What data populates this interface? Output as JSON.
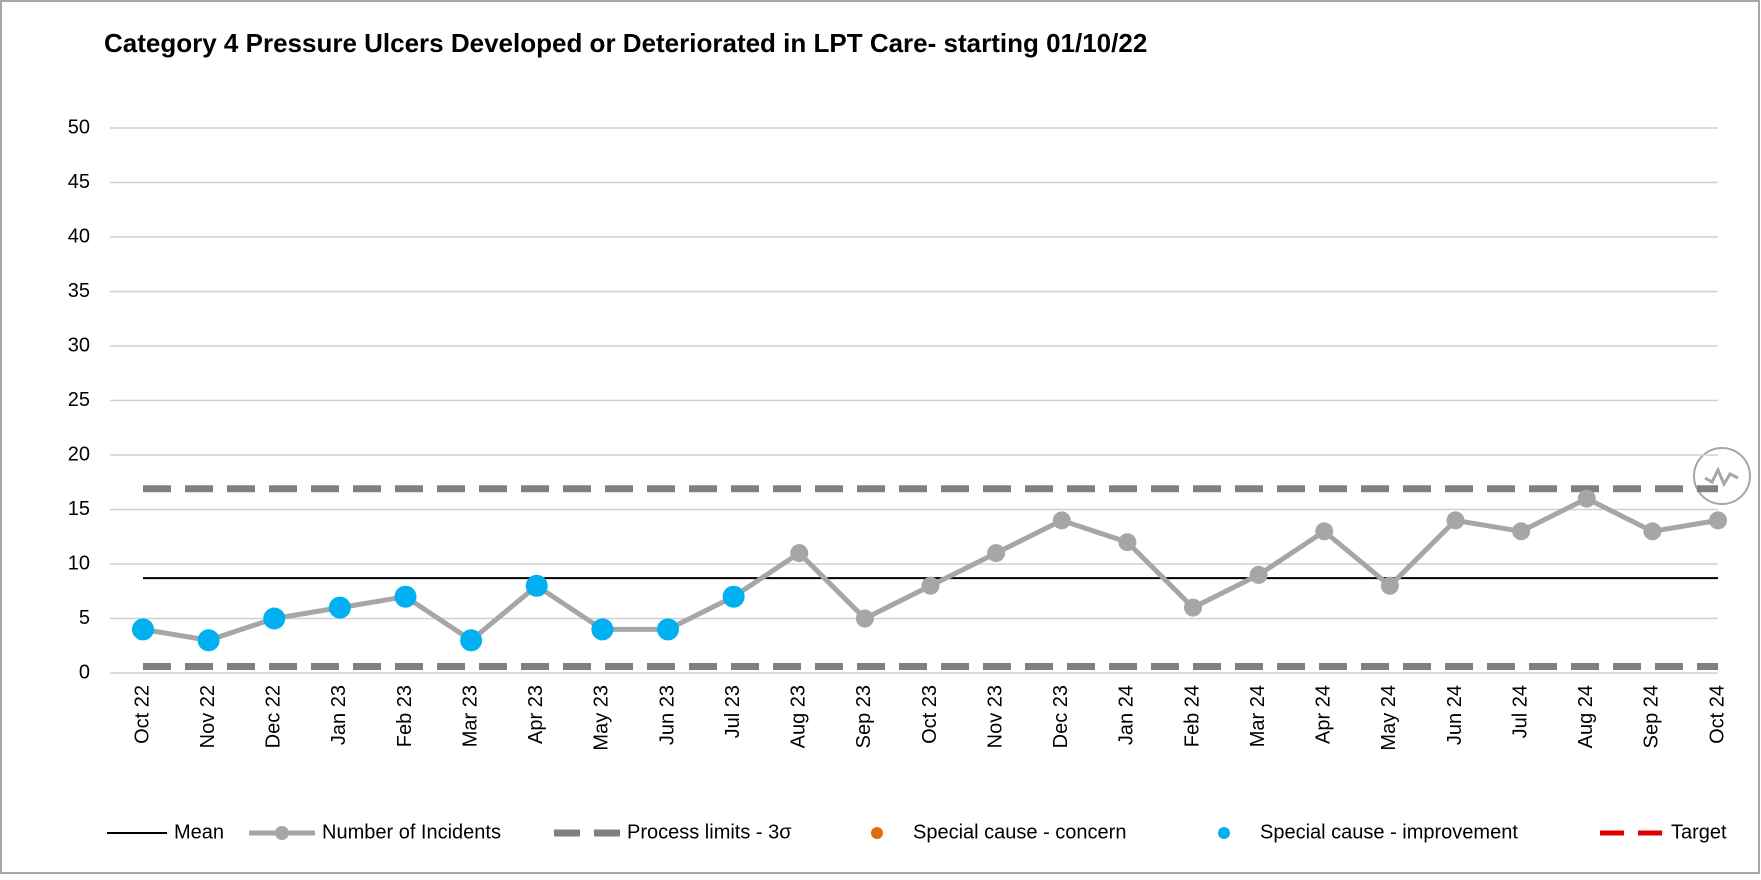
{
  "chart_data": {
    "type": "line",
    "title": "Category 4 Pressure Ulcers Developed or Deteriorated in LPT Care- starting 01/10/22",
    "categories": [
      "Oct 22",
      "Nov 22",
      "Dec 22",
      "Jan 23",
      "Feb 23",
      "Mar 23",
      "Apr 23",
      "May 23",
      "Jun 23",
      "Jul 23",
      "Aug 23",
      "Sep 23",
      "Oct 23",
      "Nov 23",
      "Dec 23",
      "Jan 24",
      "Feb 24",
      "Mar 24",
      "Apr 24",
      "May 24",
      "Jun 24",
      "Jul 24",
      "Aug 24",
      "Sep 24",
      "Oct 24"
    ],
    "ylim": [
      0,
      50
    ],
    "yticks": [
      0,
      5,
      10,
      15,
      20,
      25,
      30,
      35,
      40,
      45,
      50
    ],
    "grid": true,
    "series": [
      {
        "name": "Mean",
        "color": "#000000",
        "style": "solid",
        "values": [
          8.7,
          8.7,
          8.7,
          8.7,
          8.7,
          8.7,
          8.7,
          8.7,
          8.7,
          8.7,
          8.7,
          8.7,
          8.7,
          8.7,
          8.7,
          8.7,
          8.7,
          8.7,
          8.7,
          8.7,
          8.7,
          8.7,
          8.7,
          8.7,
          8.7
        ]
      },
      {
        "name": "Number of Incidents",
        "color": "#a6a6a6",
        "style": "line-marker",
        "values": [
          4,
          3,
          5,
          6,
          7,
          3,
          8,
          4,
          4,
          7,
          11,
          5,
          8,
          11,
          14,
          12,
          6,
          9,
          13,
          8,
          14,
          13,
          16,
          13,
          14
        ]
      },
      {
        "name": "Process limits - 3σ",
        "color": "#808080",
        "style": "dashed",
        "values": [
          16.9,
          16.9,
          16.9,
          16.9,
          16.9,
          16.9,
          16.9,
          16.9,
          16.9,
          16.9,
          16.9,
          16.9,
          16.9,
          16.9,
          16.9,
          16.9,
          16.9,
          16.9,
          16.9,
          16.9,
          16.9,
          16.9,
          16.9,
          16.9,
          16.9
        ],
        "lower": [
          0.6,
          0.6,
          0.6,
          0.6,
          0.6,
          0.6,
          0.6,
          0.6,
          0.6,
          0.6,
          0.6,
          0.6,
          0.6,
          0.6,
          0.6,
          0.6,
          0.6,
          0.6,
          0.6,
          0.6,
          0.6,
          0.6,
          0.6,
          0.6,
          0.6
        ]
      },
      {
        "name": "Special cause - concern",
        "color": "#e36c0a",
        "style": "points",
        "values": [
          null,
          null,
          null,
          null,
          null,
          null,
          null,
          null,
          null,
          null,
          null,
          null,
          null,
          null,
          null,
          null,
          null,
          null,
          null,
          null,
          null,
          null,
          null,
          null,
          null
        ]
      },
      {
        "name": "Special cause  - improvement",
        "color": "#00b0f0",
        "style": "points",
        "values": [
          4,
          3,
          5,
          6,
          7,
          3,
          8,
          4,
          4,
          7,
          null,
          null,
          null,
          null,
          null,
          null,
          null,
          null,
          null,
          null,
          null,
          null,
          null,
          null,
          null
        ]
      },
      {
        "name": "Target",
        "color": "#e00000",
        "style": "target",
        "values": [
          null,
          null,
          null,
          null,
          null,
          null,
          null,
          null,
          null,
          null,
          null,
          null,
          null,
          null,
          null,
          null,
          null,
          null,
          null,
          null,
          null,
          null,
          null,
          null,
          null
        ]
      }
    ]
  }
}
